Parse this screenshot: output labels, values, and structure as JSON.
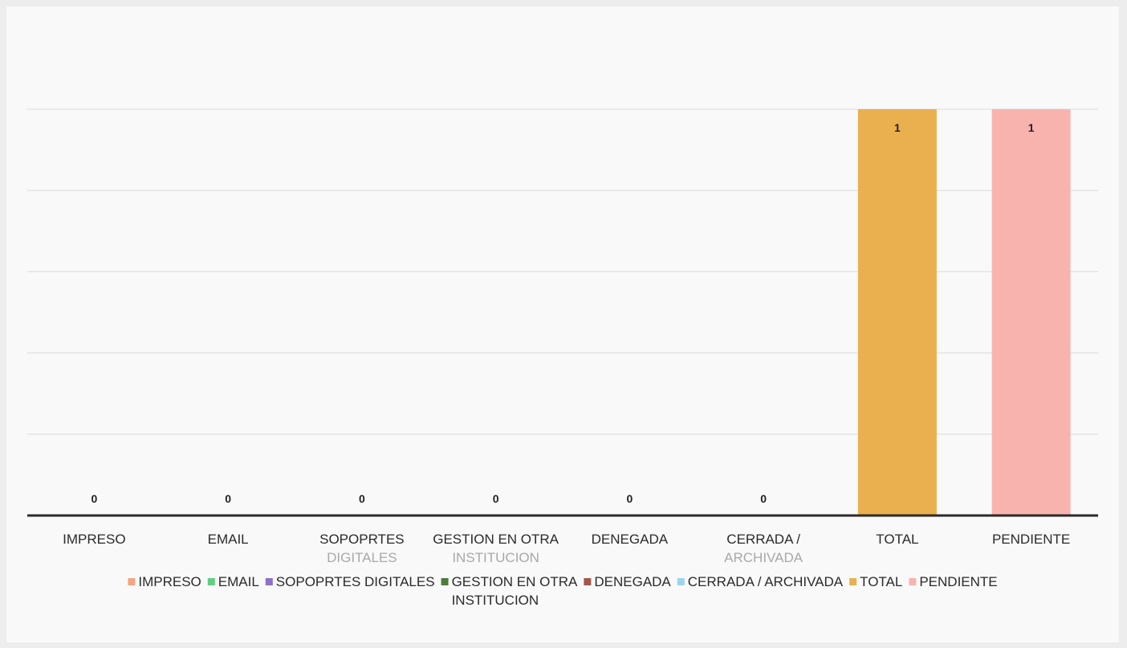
{
  "chart_data": {
    "type": "bar",
    "categories": [
      {
        "line1": "IMPRESO",
        "line2": ""
      },
      {
        "line1": "EMAIL",
        "line2": ""
      },
      {
        "line1": "SOPOPRTES",
        "line2": "DIGITALES"
      },
      {
        "line1": "GESTION EN OTRA",
        "line2": "INSTITUCION"
      },
      {
        "line1": "DENEGADA",
        "line2": ""
      },
      {
        "line1": "CERRADA /",
        "line2": "ARCHIVADA"
      },
      {
        "line1": "TOTAL",
        "line2": ""
      },
      {
        "line1": "PENDIENTE",
        "line2": ""
      }
    ],
    "values": [
      0,
      0,
      0,
      0,
      0,
      0,
      1,
      1
    ],
    "data_labels": [
      "0",
      "0",
      "0",
      "0",
      "0",
      "0",
      "1",
      "1"
    ],
    "colors": [
      "#f4a582",
      "#5fcf7f",
      "#8e72c7",
      "#4e7a3a",
      "#a0584a",
      "#9fd3f0",
      "#eab04f",
      "#f9b3ae"
    ],
    "ylim": [
      0,
      1
    ],
    "grid": true,
    "legend_position": "bottom",
    "legend": [
      {
        "label": "IMPRESO",
        "color": "#f4a582"
      },
      {
        "label": "EMAIL",
        "color": "#5fcf7f"
      },
      {
        "label": "SOPOPRTES   DIGITALES",
        "color": "#8e72c7"
      },
      {
        "label": "GESTION EN OTRA",
        "color": "#4e7a3a"
      },
      {
        "label": "DENEGADA",
        "color": "#a0584a"
      },
      {
        "label": "CERRADA / ARCHIVADA",
        "color": "#9fd3f0"
      },
      {
        "label": "TOTAL",
        "color": "#eab04f"
      },
      {
        "label": "PENDIENTE",
        "color": "#f9b3ae"
      }
    ],
    "legend_overflow": "INSTITUCION"
  }
}
